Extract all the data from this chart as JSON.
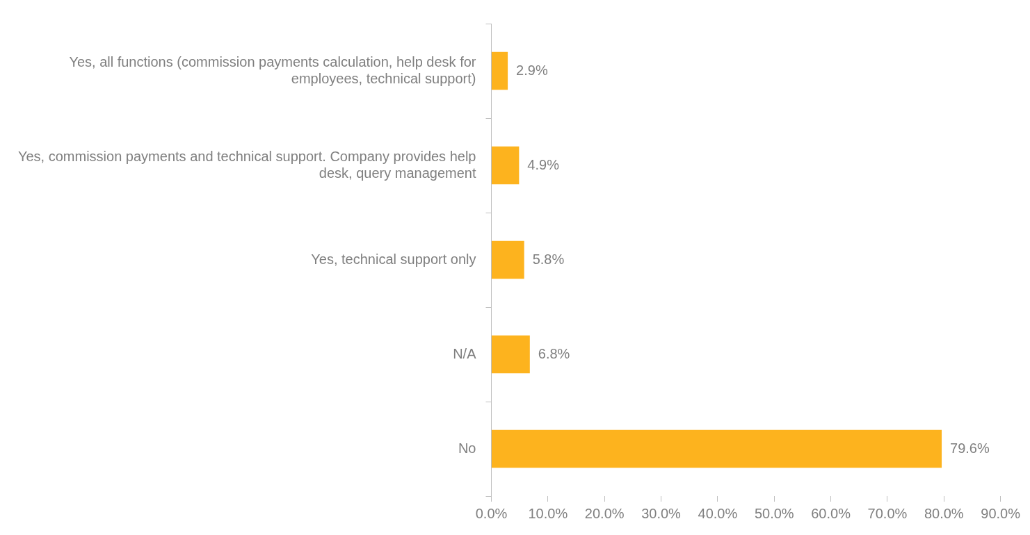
{
  "chart_data": {
    "type": "bar",
    "orientation": "horizontal",
    "categories": [
      "Yes, all functions (commission payments calculation, help desk for employees, technical support)",
      "Yes, commission payments and technical support. Company provides help desk, query management",
      "Yes, technical support only",
      "N/A",
      "No"
    ],
    "values": [
      2.9,
      4.9,
      5.8,
      6.8,
      79.6
    ],
    "value_labels": [
      "2.9%",
      "4.9%",
      "5.8%",
      "6.8%",
      "79.6%"
    ],
    "color": "#fdb31e",
    "xlim": [
      0,
      90
    ],
    "xticks": [
      {
        "value": 0,
        "label": "0.0%"
      },
      {
        "value": 10,
        "label": "10.0%"
      },
      {
        "value": 20,
        "label": "20.0%"
      },
      {
        "value": 30,
        "label": "30.0%"
      },
      {
        "value": 40,
        "label": "40.0%"
      },
      {
        "value": 50,
        "label": "50.0%"
      },
      {
        "value": 60,
        "label": "60.0%"
      },
      {
        "value": 70,
        "label": "70.0%"
      },
      {
        "value": 80,
        "label": "80.0%"
      },
      {
        "value": 90,
        "label": "90.0%"
      }
    ],
    "grid": false,
    "legend": false
  }
}
